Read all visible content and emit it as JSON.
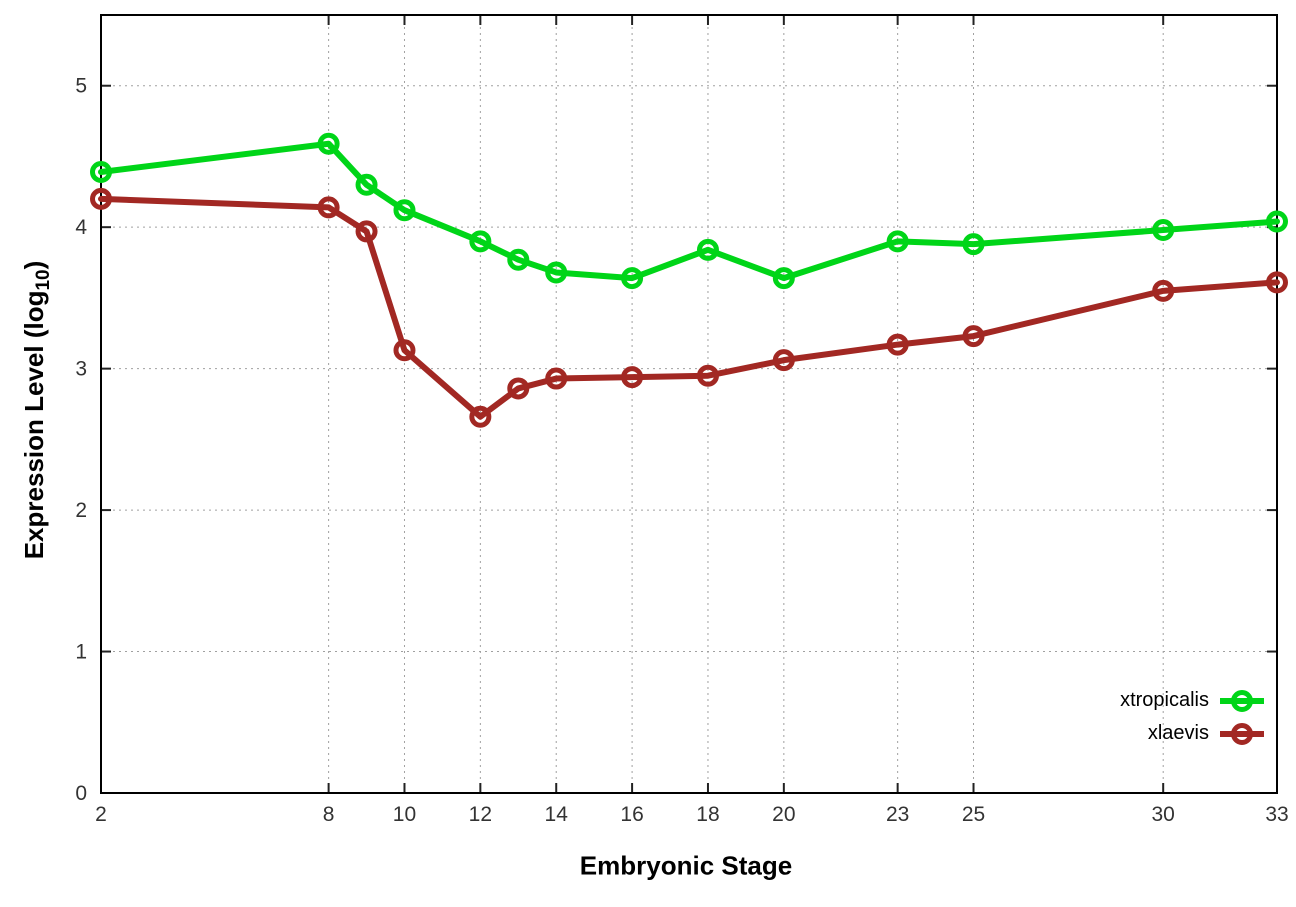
{
  "chart_data": {
    "type": "line",
    "title": "",
    "xlabel": "Embryonic Stage",
    "ylabel": "Expression Level (log10)",
    "ylabel_parts": {
      "main": "Expression Level (log",
      "sub": "10",
      "close": ")"
    },
    "x": [
      2,
      8,
      9,
      10,
      12,
      13,
      14,
      16,
      18,
      20,
      23,
      25,
      30,
      33
    ],
    "xtick_labels": [
      2,
      8,
      10,
      12,
      14,
      16,
      18,
      20,
      23,
      25,
      30,
      33
    ],
    "yticks": [
      0,
      1,
      2,
      3,
      4,
      5
    ],
    "xlim": [
      2,
      33
    ],
    "ylim": [
      0,
      5.5
    ],
    "grid": true,
    "grid_style": "dotted",
    "legend_position": "inside-bottom-right",
    "series": [
      {
        "name": "xtropicalis",
        "color": "#00d518",
        "marker": "open-circle",
        "values": [
          4.39,
          4.59,
          4.3,
          4.12,
          3.9,
          3.77,
          3.68,
          3.64,
          3.84,
          3.64,
          3.9,
          3.88,
          3.98,
          4.04
        ]
      },
      {
        "name": "xlaevis",
        "color": "#a22823",
        "marker": "open-circle",
        "values": [
          4.2,
          4.14,
          3.97,
          3.13,
          2.66,
          2.86,
          2.93,
          2.94,
          2.95,
          3.06,
          3.17,
          3.23,
          3.55,
          3.61
        ]
      }
    ]
  },
  "style": {
    "background": "#ffffff",
    "border_color": "#000000",
    "grid_color": "#a0a0a0",
    "tick_text_color": "#333333"
  }
}
